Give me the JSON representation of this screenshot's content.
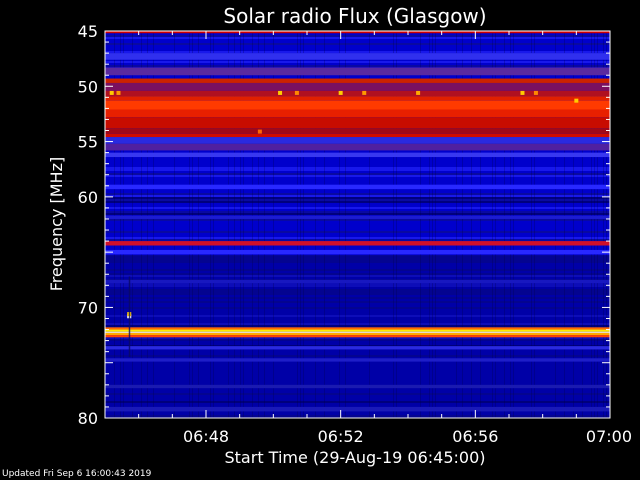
{
  "chart_data": {
    "type": "heatmap",
    "title": "Solar radio Flux (Glasgow)",
    "xlabel": "Start Time (29-Aug-19 06:45:00)",
    "ylabel": "Frequency [MHz]",
    "x_ticks": [
      "06:48",
      "06:52",
      "06:56",
      "07:00"
    ],
    "x_tick_minutes": [
      3,
      7,
      11,
      15
    ],
    "xlim_minutes": [
      0,
      15
    ],
    "y_ticks": [
      45,
      50,
      55,
      60,
      65,
      70,
      75,
      80
    ],
    "y_tick_labels": [
      "45",
      "50",
      "55",
      "60",
      "",
      "70",
      "",
      "80"
    ],
    "ylim": [
      45,
      80
    ],
    "y_inverted": true,
    "colormap": [
      "#000066",
      "#0000cc",
      "#2233ff",
      "#800020",
      "#cc0000",
      "#ff3300",
      "#ff8800",
      "#ffee00",
      "#ffffff"
    ],
    "emission_bands": [
      {
        "freq_low": 44.9,
        "freq_high": 45.2,
        "color": "#cc0000"
      },
      {
        "freq_low": 47.0,
        "freq_high": 47.6,
        "color": "#3030ee"
      },
      {
        "freq_low": 48.3,
        "freq_high": 49.0,
        "color": "#5a2aa0"
      },
      {
        "freq_low": 49.3,
        "freq_high": 49.7,
        "color": "#cc2200"
      },
      {
        "freq_low": 49.7,
        "freq_high": 50.4,
        "color": "#7a1060"
      },
      {
        "freq_low": 50.4,
        "freq_high": 50.9,
        "color": "#b01020"
      },
      {
        "freq_low": 50.9,
        "freq_high": 51.3,
        "color": "#e02000"
      },
      {
        "freq_low": 51.3,
        "freq_high": 52.1,
        "color": "#ff3a00"
      },
      {
        "freq_low": 52.1,
        "freq_high": 52.8,
        "color": "#e82000"
      },
      {
        "freq_low": 52.8,
        "freq_high": 53.8,
        "color": "#c80c00"
      },
      {
        "freq_low": 53.8,
        "freq_high": 54.3,
        "color": "#a00818"
      },
      {
        "freq_low": 54.3,
        "freq_high": 54.6,
        "color": "#d00a00"
      },
      {
        "freq_low": 54.6,
        "freq_high": 55.2,
        "color": "#2a2ae0"
      },
      {
        "freq_low": 55.2,
        "freq_high": 55.8,
        "color": "#5020a0"
      },
      {
        "freq_low": 56.0,
        "freq_high": 56.4,
        "color": "#3838f0"
      },
      {
        "freq_low": 58.9,
        "freq_high": 59.3,
        "color": "#2828ff"
      },
      {
        "freq_low": 61.7,
        "freq_high": 62.0,
        "color": "#1c1cd0"
      },
      {
        "freq_low": 64.0,
        "freq_high": 64.4,
        "color": "#d0102a"
      },
      {
        "freq_low": 64.8,
        "freq_high": 65.2,
        "color": "#2828ff"
      },
      {
        "freq_low": 67.5,
        "freq_high": 67.8,
        "color": "#1818c0"
      },
      {
        "freq_low": 71.8,
        "freq_high": 72.0,
        "color": "#ff6a00"
      },
      {
        "freq_low": 72.0,
        "freq_high": 72.2,
        "color": "#ffee00"
      },
      {
        "freq_low": 72.2,
        "freq_high": 72.3,
        "color": "#ffffff"
      },
      {
        "freq_low": 72.3,
        "freq_high": 72.5,
        "color": "#ffaa00"
      },
      {
        "freq_low": 72.5,
        "freq_high": 72.7,
        "color": "#ff4400"
      },
      {
        "freq_low": 73.5,
        "freq_high": 73.8,
        "color": "#2a2ae0"
      },
      {
        "freq_low": 74.6,
        "freq_high": 74.9,
        "color": "#1e1ec8"
      },
      {
        "freq_low": 77.0,
        "freq_high": 77.3,
        "color": "#1a1ab0"
      },
      {
        "freq_low": 79.0,
        "freq_high": 79.4,
        "color": "#1a1ab8"
      }
    ],
    "bursts": [
      {
        "minute": 0.2,
        "freq": 50.6,
        "color": "#ffcc00"
      },
      {
        "minute": 0.4,
        "freq": 50.6,
        "color": "#ff9900"
      },
      {
        "minute": 5.2,
        "freq": 50.6,
        "color": "#ffcc00"
      },
      {
        "minute": 5.7,
        "freq": 50.6,
        "color": "#ff8800"
      },
      {
        "minute": 7.0,
        "freq": 50.6,
        "color": "#ffcc00"
      },
      {
        "minute": 7.7,
        "freq": 50.6,
        "color": "#ff9900"
      },
      {
        "minute": 9.3,
        "freq": 50.6,
        "color": "#ffaa00"
      },
      {
        "minute": 12.4,
        "freq": 50.6,
        "color": "#ffcc00"
      },
      {
        "minute": 12.8,
        "freq": 50.6,
        "color": "#ff8800"
      },
      {
        "minute": 14.0,
        "freq": 51.3,
        "color": "#ffcc00"
      },
      {
        "minute": 4.6,
        "freq": 54.1,
        "color": "#ff6600"
      },
      {
        "minute": 0.72,
        "freq": 70.8,
        "color": "#ffffff"
      },
      {
        "minute": 0.72,
        "freq": 70.6,
        "color": "#ffcc00"
      }
    ]
  },
  "footer": {
    "updated": "Updated Fri Sep  6 16:00:43 2019"
  }
}
